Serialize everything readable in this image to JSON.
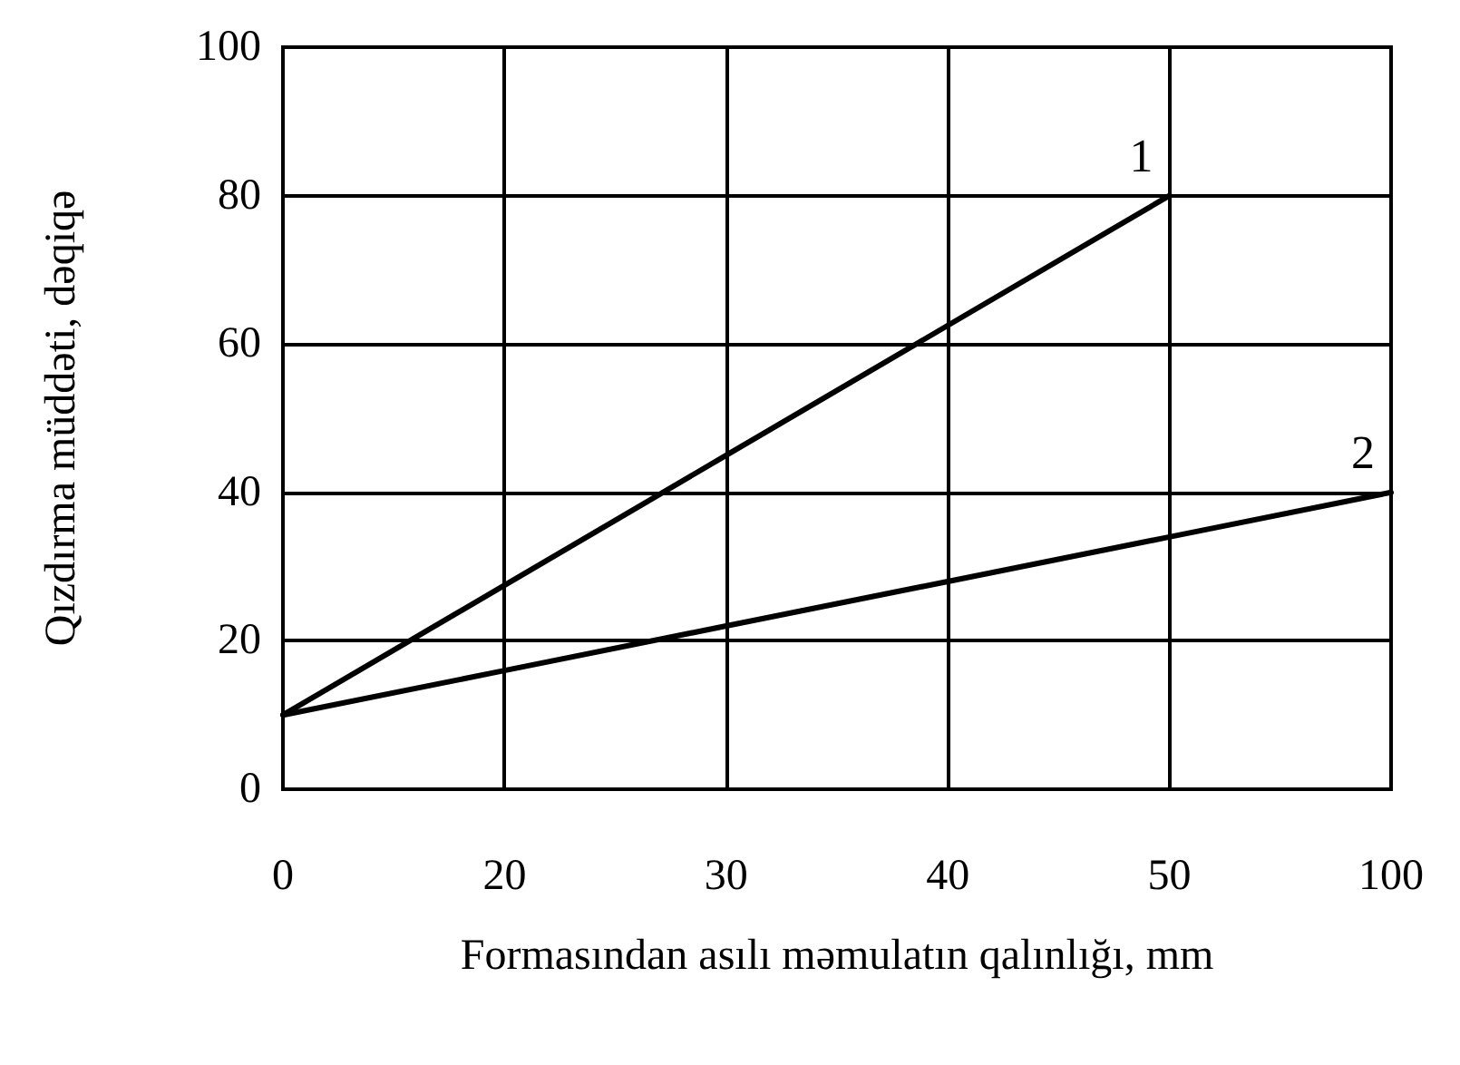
{
  "chart_data": {
    "type": "line",
    "xlabel": "Formasından asılı məmulatın qalınlığı, mm",
    "ylabel": "Qızdırma müddəti, dəqiqə",
    "categories": [
      "0",
      "20",
      "30",
      "40",
      "50",
      "100"
    ],
    "series": [
      {
        "name": "1",
        "color": "#000000",
        "values": [
          10,
          27.5,
          45,
          62.5,
          80,
          null
        ]
      },
      {
        "name": "2",
        "color": "#000000",
        "values": [
          10,
          16,
          22,
          28,
          34,
          40
        ]
      }
    ],
    "ylim": [
      0,
      100
    ],
    "yticks": [
      0,
      20,
      40,
      60,
      80,
      100
    ],
    "grid": true,
    "legend": false,
    "marker": "none",
    "line_style": "solid"
  }
}
